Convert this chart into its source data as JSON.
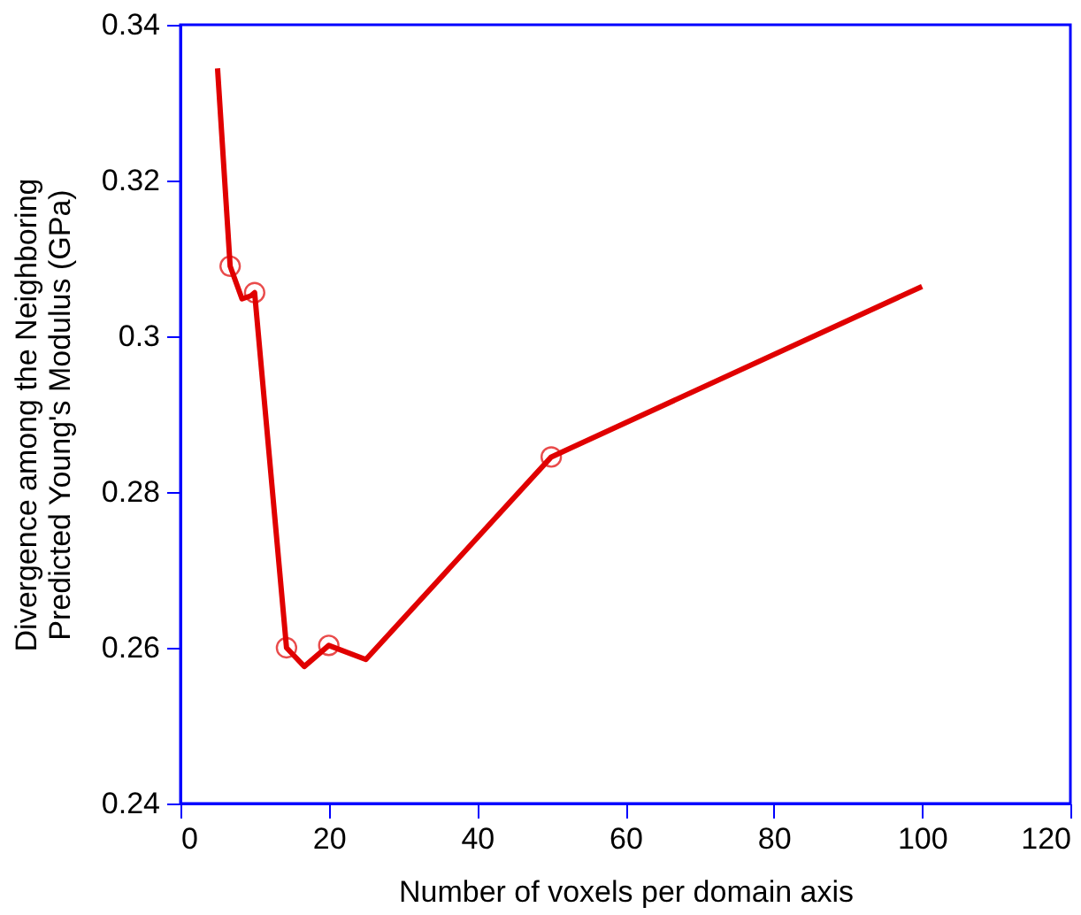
{
  "chart_data": {
    "type": "line",
    "xlabel": "Number of voxels per domain axis",
    "ylabel": "Divergence among the Neighboring\nPredicted Young's Modulus (GPa)",
    "xlim": [
      0,
      120
    ],
    "xticks": [
      0,
      20,
      40,
      60,
      80,
      100,
      120
    ],
    "ylim": [
      0.24,
      0.34
    ],
    "yticks": [
      0.24,
      0.26,
      0.28,
      0.3,
      0.32,
      0.34
    ],
    "grid": false,
    "series": [
      {
        "color": "#e00000",
        "marker": "none",
        "line_style": "solid",
        "x": [
          5,
          6.7,
          8.3,
          9.5,
          10,
          14.3,
          16.7,
          20,
          25,
          50,
          100
        ],
        "values": [
          0.3344,
          0.309,
          0.3048,
          0.3052,
          0.3056,
          0.26,
          0.2576,
          0.2603,
          0.2585,
          0.2845,
          0.3064
        ]
      },
      {
        "type": "scatter",
        "color": "#e00000",
        "marker": "circle",
        "x": [
          6.7,
          10,
          14.3,
          20,
          50
        ],
        "values": [
          0.309,
          0.3056,
          0.26,
          0.2603,
          0.2845
        ]
      }
    ]
  }
}
